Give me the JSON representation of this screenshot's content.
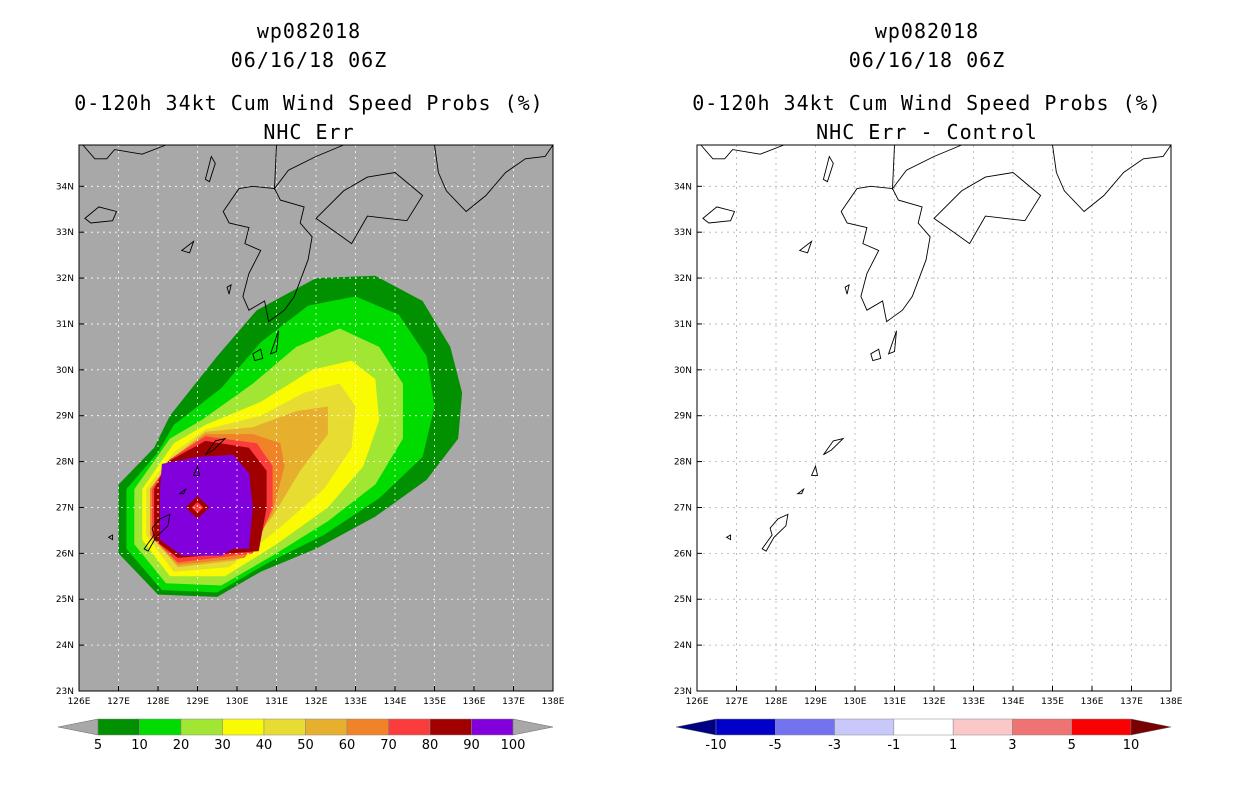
{
  "left": {
    "title1": "wp082018",
    "title2": "06/16/18 06Z",
    "title3": "0-120h 34kt Cum Wind Speed Probs (%)",
    "title4": "NHC Err",
    "colorbar": {
      "labels": [
        "5",
        "10",
        "20",
        "30",
        "40",
        "50",
        "60",
        "70",
        "80",
        "90",
        "100"
      ],
      "colors": [
        "#009000",
        "#00dc00",
        "#a0e632",
        "#fafa00",
        "#e6dc32",
        "#e6af2d",
        "#f08228",
        "#fa3c3c",
        "#a00000",
        "#8200dc"
      ],
      "under_color": "#a8a8a8",
      "over_color": "#a8a8a8"
    }
  },
  "right": {
    "title1": "wp082018",
    "title2": "06/16/18 06Z",
    "title3": "0-120h 34kt Cum Wind Speed Probs (%)",
    "title4": "NHC Err - Control",
    "colorbar": {
      "labels": [
        "-10",
        "-5",
        "-3",
        "-1",
        "1",
        "3",
        "5",
        "10"
      ],
      "colors": [
        "#0000c8",
        "#7373f0",
        "#c8c8fa",
        "#ffffff",
        "#fac8c8",
        "#f07373",
        "#fa0000"
      ],
      "under_color": "#000082",
      "over_color": "#780000"
    }
  },
  "axes": {
    "lon_labels": [
      "126E",
      "127E",
      "128E",
      "129E",
      "130E",
      "131E",
      "132E",
      "133E",
      "134E",
      "135E",
      "136E",
      "137E",
      "138E"
    ],
    "lat_labels": [
      "23N",
      "24N",
      "25N",
      "26N",
      "27N",
      "28N",
      "29N",
      "30N",
      "31N",
      "32N",
      "33N",
      "34N"
    ],
    "lon_range": [
      126,
      138
    ],
    "lat_range": [
      23,
      34.9
    ]
  },
  "map_background_color": "#a8a8a8"
}
